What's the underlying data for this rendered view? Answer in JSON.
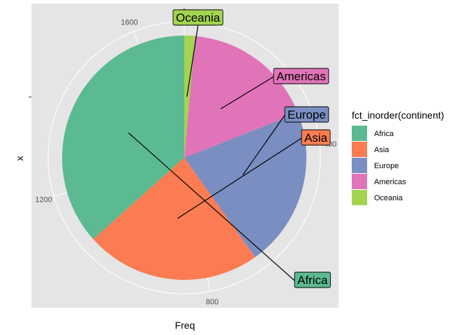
{
  "chart_data": {
    "type": "pie",
    "xlabel": "Freq",
    "ylabel": "x",
    "legend_title": "fct_inorder(continent)",
    "legend_position": "right",
    "grid": true,
    "categories": [
      "Africa",
      "Asia",
      "Europe",
      "Americas",
      "Oceania"
    ],
    "values": [
      624,
      396,
      360,
      300,
      24
    ],
    "colors": [
      "#5BBA91",
      "#FB7C52",
      "#7B8EC2",
      "#E174B8",
      "#A2D44F"
    ],
    "radial_ticks": [
      "0",
      "400",
      "800",
      "1200",
      "1600"
    ],
    "radial_tick_values": [
      0,
      400,
      800,
      1200,
      1600
    ],
    "total": 1704
  }
}
